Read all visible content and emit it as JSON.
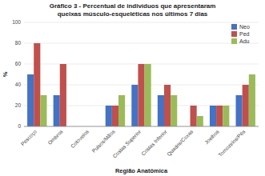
{
  "chart_data": {
    "type": "bar",
    "title": "Gráfico 3 - Percentual de indivíduos que apresentaram\nqueixas músculo-esqueléticas nos últimos 7 dias",
    "x_label": "Região Anatômica",
    "y_label": "%",
    "categories": [
      "Pescoço",
      "Ombros",
      "Cotovelos",
      "Pulsos/Mãos",
      "Costas Superior",
      "Costas Inferior",
      "Quadris/Coxas",
      "Joelhos",
      "Tornozelos/Pés"
    ],
    "series": [
      {
        "name": "Neo",
        "color": "#4472C4",
        "values": [
          50,
          30,
          0,
          20,
          40,
          30,
          0,
          20,
          30
        ]
      },
      {
        "name": "Ped",
        "color": "#C0504D",
        "values": [
          80,
          60,
          0,
          20,
          60,
          40,
          20,
          20,
          40
        ]
      },
      {
        "name": "Adu",
        "color": "#9BBB59",
        "values": [
          30,
          0,
          0,
          30,
          60,
          30,
          10,
          20,
          50
        ]
      }
    ],
    "ylim": [
      0,
      100
    ],
    "yticks": [
      0,
      20,
      40,
      60,
      80,
      100
    ],
    "grid": true,
    "legend": "upper right"
  }
}
